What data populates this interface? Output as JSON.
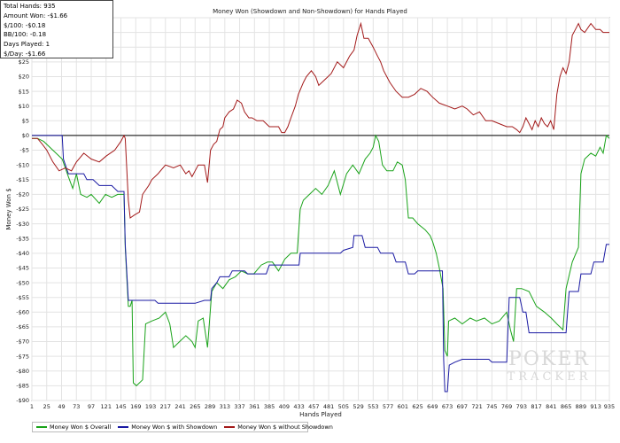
{
  "stats": {
    "lines": [
      "Total Hands: 935",
      "Amount Won: -$1.66",
      "$/100: -$0.18",
      "BB/100: -0.18",
      "Days Played: 1",
      "$/Day: -$1.66"
    ]
  },
  "watermark": {
    "big": "POKER",
    "small": "TRACKER"
  },
  "chart_data": {
    "type": "line",
    "title": "Money Won (Showdown and Non-Showdown) for Hands Played",
    "xlabel": "Hands Played",
    "ylabel": "Money Won $",
    "xlim": [
      1,
      935
    ],
    "ylim": [
      -90,
      40
    ],
    "grid": true,
    "legend_position": "bottom-left",
    "x_ticks": [
      1,
      25,
      49,
      73,
      97,
      121,
      145,
      169,
      193,
      217,
      241,
      265,
      289,
      313,
      337,
      361,
      385,
      409,
      433,
      457,
      481,
      505,
      529,
      553,
      577,
      601,
      625,
      649,
      673,
      697,
      721,
      745,
      769,
      793,
      817,
      841,
      865,
      889,
      913,
      935
    ],
    "y_ticks": [
      -90,
      -85,
      -80,
      -75,
      -70,
      -65,
      -60,
      -55,
      -50,
      -45,
      -40,
      -35,
      -30,
      -25,
      -20,
      -15,
      -10,
      -5,
      0,
      5,
      10,
      15,
      20,
      25,
      30,
      35,
      40
    ],
    "y_tick_labels": [
      "-$90",
      "-$85",
      "-$80",
      "-$75",
      "-$70",
      "-$65",
      "-$60",
      "-$55",
      "-$50",
      "-$45",
      "-$40",
      "-$35",
      "-$30",
      "-$25",
      "-$20",
      "-$15",
      "-$10",
      "-$5",
      "$0",
      "$5",
      "$10",
      "$15",
      "$20",
      "$25",
      "$30",
      "$35",
      "$40"
    ],
    "series": [
      {
        "name": "Money Won $ Overall",
        "color": "#1aa31a",
        "points": [
          [
            1,
            -1
          ],
          [
            10,
            -1
          ],
          [
            20,
            -2
          ],
          [
            35,
            -5
          ],
          [
            50,
            -8
          ],
          [
            60,
            -14
          ],
          [
            67,
            -18
          ],
          [
            73,
            -13
          ],
          [
            80,
            -20
          ],
          [
            90,
            -21
          ],
          [
            97,
            -20
          ],
          [
            110,
            -23
          ],
          [
            120,
            -20
          ],
          [
            130,
            -21
          ],
          [
            140,
            -20
          ],
          [
            150,
            -20
          ],
          [
            152,
            -38
          ],
          [
            157,
            -58
          ],
          [
            160,
            -58
          ],
          [
            163,
            -56
          ],
          [
            165,
            -84
          ],
          [
            170,
            -85
          ],
          [
            180,
            -83
          ],
          [
            185,
            -64
          ],
          [
            195,
            -63
          ],
          [
            207,
            -62
          ],
          [
            217,
            -60
          ],
          [
            224,
            -64
          ],
          [
            230,
            -72
          ],
          [
            240,
            -70
          ],
          [
            250,
            -68
          ],
          [
            260,
            -70
          ],
          [
            265,
            -72
          ],
          [
            270,
            -63
          ],
          [
            278,
            -62
          ],
          [
            285,
            -72
          ],
          [
            292,
            -53
          ],
          [
            300,
            -50
          ],
          [
            310,
            -52
          ],
          [
            320,
            -49
          ],
          [
            330,
            -48
          ],
          [
            340,
            -46
          ],
          [
            350,
            -47
          ],
          [
            360,
            -47
          ],
          [
            372,
            -44
          ],
          [
            382,
            -43
          ],
          [
            390,
            -43
          ],
          [
            400,
            -46
          ],
          [
            410,
            -42
          ],
          [
            420,
            -40
          ],
          [
            430,
            -40
          ],
          [
            435,
            -25
          ],
          [
            440,
            -22
          ],
          [
            450,
            -20
          ],
          [
            460,
            -18
          ],
          [
            470,
            -20
          ],
          [
            480,
            -17
          ],
          [
            490,
            -12
          ],
          [
            500,
            -20
          ],
          [
            510,
            -13
          ],
          [
            520,
            -10
          ],
          [
            530,
            -13
          ],
          [
            540,
            -8
          ],
          [
            548,
            -6
          ],
          [
            553,
            -4
          ],
          [
            557,
            0
          ],
          [
            562,
            -2
          ],
          [
            568,
            -10
          ],
          [
            575,
            -12
          ],
          [
            585,
            -12
          ],
          [
            592,
            -9
          ],
          [
            600,
            -10
          ],
          [
            605,
            -15
          ],
          [
            610,
            -28
          ],
          [
            617,
            -28
          ],
          [
            625,
            -30
          ],
          [
            637,
            -32
          ],
          [
            645,
            -34
          ],
          [
            649,
            -36
          ],
          [
            655,
            -40
          ],
          [
            660,
            -45
          ],
          [
            666,
            -52
          ],
          [
            669,
            -73
          ],
          [
            673,
            -75
          ],
          [
            675,
            -63
          ],
          [
            685,
            -62
          ],
          [
            697,
            -64
          ],
          [
            710,
            -62
          ],
          [
            720,
            -63
          ],
          [
            733,
            -62
          ],
          [
            745,
            -64
          ],
          [
            757,
            -63
          ],
          [
            769,
            -60
          ],
          [
            775,
            -66
          ],
          [
            780,
            -70
          ],
          [
            785,
            -52
          ],
          [
            793,
            -52
          ],
          [
            805,
            -53
          ],
          [
            817,
            -58
          ],
          [
            830,
            -60
          ],
          [
            841,
            -62
          ],
          [
            850,
            -64
          ],
          [
            860,
            -66
          ],
          [
            865,
            -52
          ],
          [
            875,
            -43
          ],
          [
            885,
            -38
          ],
          [
            889,
            -13
          ],
          [
            895,
            -8
          ],
          [
            905,
            -6
          ],
          [
            913,
            -7
          ],
          [
            920,
            -4
          ],
          [
            925,
            -6
          ],
          [
            930,
            0
          ],
          [
            935,
            -1
          ]
        ]
      },
      {
        "name": "Money Won $ with Showdown",
        "color": "#1a1aa3",
        "points": [
          [
            1,
            0
          ],
          [
            30,
            0
          ],
          [
            50,
            0
          ],
          [
            52,
            -8
          ],
          [
            60,
            -13
          ],
          [
            85,
            -13
          ],
          [
            90,
            -15
          ],
          [
            100,
            -15
          ],
          [
            110,
            -17
          ],
          [
            130,
            -17
          ],
          [
            140,
            -19
          ],
          [
            150,
            -19
          ],
          [
            152,
            -37
          ],
          [
            157,
            -56
          ],
          [
            200,
            -56
          ],
          [
            205,
            -57
          ],
          [
            265,
            -57
          ],
          [
            280,
            -56
          ],
          [
            290,
            -56
          ],
          [
            292,
            -52
          ],
          [
            300,
            -50
          ],
          [
            305,
            -48
          ],
          [
            320,
            -48
          ],
          [
            325,
            -46
          ],
          [
            345,
            -46
          ],
          [
            350,
            -47
          ],
          [
            380,
            -47
          ],
          [
            385,
            -44
          ],
          [
            433,
            -44
          ],
          [
            435,
            -40
          ],
          [
            500,
            -40
          ],
          [
            505,
            -39
          ],
          [
            520,
            -38
          ],
          [
            522,
            -34
          ],
          [
            535,
            -34
          ],
          [
            540,
            -38
          ],
          [
            560,
            -38
          ],
          [
            565,
            -40
          ],
          [
            585,
            -40
          ],
          [
            590,
            -43
          ],
          [
            605,
            -43
          ],
          [
            610,
            -47
          ],
          [
            620,
            -47
          ],
          [
            625,
            -46
          ],
          [
            665,
            -46
          ],
          [
            667,
            -76
          ],
          [
            669,
            -87
          ],
          [
            673,
            -87
          ],
          [
            676,
            -78
          ],
          [
            685,
            -77
          ],
          [
            697,
            -76
          ],
          [
            740,
            -76
          ],
          [
            745,
            -77
          ],
          [
            769,
            -77
          ],
          [
            773,
            -55
          ],
          [
            790,
            -55
          ],
          [
            795,
            -60
          ],
          [
            800,
            -60
          ],
          [
            805,
            -67
          ],
          [
            865,
            -67
          ],
          [
            870,
            -53
          ],
          [
            885,
            -53
          ],
          [
            889,
            -47
          ],
          [
            905,
            -47
          ],
          [
            910,
            -43
          ],
          [
            925,
            -43
          ],
          [
            930,
            -37
          ],
          [
            935,
            -37
          ]
        ]
      },
      {
        "name": "Money Won $ without Showdown",
        "color": "#a31a1a",
        "points": [
          [
            1,
            -1
          ],
          [
            10,
            -1
          ],
          [
            18,
            -3
          ],
          [
            25,
            -5
          ],
          [
            35,
            -9
          ],
          [
            45,
            -12
          ],
          [
            55,
            -11
          ],
          [
            65,
            -12
          ],
          [
            73,
            -9
          ],
          [
            85,
            -6
          ],
          [
            97,
            -8
          ],
          [
            110,
            -9
          ],
          [
            121,
            -7
          ],
          [
            135,
            -5
          ],
          [
            145,
            -2
          ],
          [
            150,
            0
          ],
          [
            152,
            -1
          ],
          [
            157,
            -22
          ],
          [
            160,
            -28
          ],
          [
            167,
            -27
          ],
          [
            175,
            -26
          ],
          [
            180,
            -20
          ],
          [
            190,
            -17
          ],
          [
            195,
            -15
          ],
          [
            205,
            -13
          ],
          [
            217,
            -10
          ],
          [
            230,
            -11
          ],
          [
            241,
            -10
          ],
          [
            250,
            -13
          ],
          [
            255,
            -12
          ],
          [
            260,
            -14
          ],
          [
            265,
            -12
          ],
          [
            270,
            -10
          ],
          [
            280,
            -10
          ],
          [
            285,
            -16
          ],
          [
            290,
            -5
          ],
          [
            295,
            -3
          ],
          [
            300,
            -2
          ],
          [
            305,
            2
          ],
          [
            310,
            3
          ],
          [
            313,
            6
          ],
          [
            320,
            8
          ],
          [
            327,
            9
          ],
          [
            333,
            12
          ],
          [
            340,
            11
          ],
          [
            345,
            8
          ],
          [
            352,
            6
          ],
          [
            357,
            6
          ],
          [
            365,
            5
          ],
          [
            375,
            5
          ],
          [
            385,
            3
          ],
          [
            400,
            3
          ],
          [
            405,
            1
          ],
          [
            410,
            1
          ],
          [
            415,
            3
          ],
          [
            420,
            6
          ],
          [
            427,
            10
          ],
          [
            432,
            14
          ],
          [
            440,
            18
          ],
          [
            445,
            20
          ],
          [
            453,
            22
          ],
          [
            460,
            20
          ],
          [
            465,
            17
          ],
          [
            475,
            19
          ],
          [
            485,
            21
          ],
          [
            495,
            25
          ],
          [
            505,
            23
          ],
          [
            515,
            27
          ],
          [
            522,
            29
          ],
          [
            527,
            34
          ],
          [
            533,
            38
          ],
          [
            538,
            33
          ],
          [
            545,
            33
          ],
          [
            553,
            30
          ],
          [
            560,
            27
          ],
          [
            565,
            25
          ],
          [
            570,
            22
          ],
          [
            580,
            18
          ],
          [
            590,
            15
          ],
          [
            600,
            13
          ],
          [
            610,
            13
          ],
          [
            620,
            14
          ],
          [
            630,
            16
          ],
          [
            640,
            15
          ],
          [
            649,
            13
          ],
          [
            660,
            11
          ],
          [
            673,
            10
          ],
          [
            685,
            9
          ],
          [
            697,
            10
          ],
          [
            705,
            9
          ],
          [
            715,
            7
          ],
          [
            725,
            8
          ],
          [
            735,
            5
          ],
          [
            745,
            5
          ],
          [
            757,
            4
          ],
          [
            769,
            3
          ],
          [
            778,
            3
          ],
          [
            785,
            2
          ],
          [
            790,
            1
          ],
          [
            795,
            3
          ],
          [
            800,
            6
          ],
          [
            805,
            4
          ],
          [
            810,
            2
          ],
          [
            815,
            5
          ],
          [
            820,
            3
          ],
          [
            825,
            6
          ],
          [
            830,
            4
          ],
          [
            835,
            3
          ],
          [
            840,
            5
          ],
          [
            845,
            2
          ],
          [
            850,
            14
          ],
          [
            855,
            20
          ],
          [
            860,
            23
          ],
          [
            865,
            21
          ],
          [
            870,
            25
          ],
          [
            875,
            34
          ],
          [
            880,
            36
          ],
          [
            885,
            38
          ],
          [
            889,
            36
          ],
          [
            895,
            35
          ],
          [
            905,
            38
          ],
          [
            913,
            36
          ],
          [
            920,
            36
          ],
          [
            925,
            35
          ],
          [
            930,
            35
          ],
          [
            935,
            35
          ]
        ]
      }
    ]
  }
}
